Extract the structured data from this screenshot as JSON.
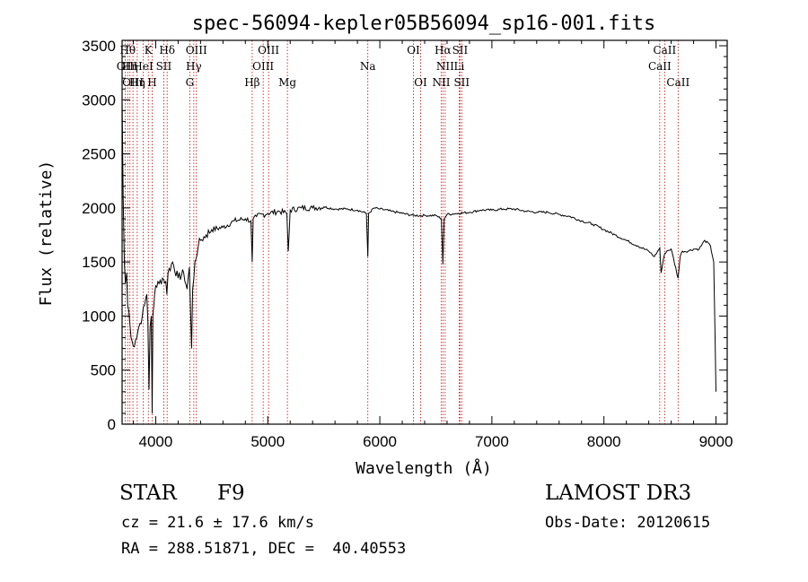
{
  "chart_data": {
    "type": "line",
    "title": "spec-56094-kepler05B56094_sp16-001.fits",
    "xlabel": "Wavelength (Å)",
    "ylabel": "Flux (relative)",
    "xlim": [
      3700,
      9100
    ],
    "ylim": [
      0,
      3550
    ],
    "xticks": [
      4000,
      5000,
      6000,
      7000,
      8000,
      9000
    ],
    "yticks": [
      0,
      500,
      1000,
      1500,
      2000,
      2500,
      3000,
      3500
    ],
    "series": [
      {
        "name": "flux",
        "x": [
          3700,
          3710,
          3720,
          3730,
          3740,
          3750,
          3760,
          3780,
          3800,
          3820,
          3850,
          3880,
          3900,
          3920,
          3930,
          3940,
          3950,
          3960,
          3968,
          3975,
          3990,
          4000,
          4030,
          4060,
          4090,
          4100,
          4110,
          4150,
          4200,
          4250,
          4280,
          4300,
          4320,
          4330,
          4340,
          4350,
          4380,
          4400,
          4450,
          4500,
          4600,
          4700,
          4800,
          4850,
          4861,
          4870,
          4900,
          5000,
          5100,
          5170,
          5183,
          5200,
          5300,
          5400,
          5500,
          5600,
          5700,
          5800,
          5880,
          5893,
          5900,
          5950,
          6000,
          6100,
          6200,
          6300,
          6400,
          6500,
          6550,
          6563,
          6575,
          6600,
          6700,
          6800,
          6900,
          7000,
          7100,
          7200,
          7300,
          7400,
          7500,
          7600,
          7700,
          7800,
          7900,
          8000,
          8100,
          8200,
          8300,
          8400,
          8450,
          8498,
          8510,
          8542,
          8560,
          8600,
          8662,
          8680,
          8700,
          8750,
          8800,
          8850,
          8900,
          8950,
          8980,
          9000
        ],
        "values": [
          3000,
          2100,
          1500,
          1300,
          1400,
          1100,
          1050,
          800,
          720,
          780,
          900,
          1000,
          1100,
          1200,
          950,
          320,
          900,
          1000,
          100,
          1000,
          1200,
          1280,
          1300,
          1350,
          1320,
          1200,
          1400,
          1500,
          1350,
          1400,
          1250,
          1450,
          700,
          1250,
          1350,
          1500,
          1650,
          1700,
          1750,
          1800,
          1820,
          1880,
          1900,
          1880,
          1500,
          1900,
          1920,
          1950,
          1970,
          1950,
          1600,
          1980,
          2000,
          2000,
          2010,
          1990,
          1990,
          1980,
          1950,
          1550,
          1950,
          2000,
          1990,
          1970,
          1950,
          1930,
          1930,
          1930,
          1900,
          1480,
          1900,
          1940,
          1950,
          1960,
          1980,
          1980,
          1990,
          1990,
          1970,
          1960,
          1960,
          1940,
          1920,
          1880,
          1850,
          1800,
          1750,
          1700,
          1650,
          1600,
          1550,
          1630,
          1400,
          1580,
          1600,
          1620,
          1350,
          1550,
          1600,
          1600,
          1620,
          1620,
          1700,
          1650,
          1500,
          300
        ]
      }
    ],
    "lines": [
      {
        "wave": 3727,
        "labels": [
          "OII"
        ],
        "row": 1
      },
      {
        "wave": 3750,
        "labels": [
          "Hθ"
        ],
        "row": 0
      },
      {
        "wave": 3770,
        "labels": [
          "Hη"
        ],
        "row": 1
      },
      {
        "wave": 3797,
        "labels": [
          "OIII"
        ],
        "row": 2
      },
      {
        "wave": 3835,
        "labels": [
          "Hη"
        ],
        "row": 2
      },
      {
        "wave": 3889,
        "labels": [
          "HeI"
        ],
        "row": 1
      },
      {
        "wave": 3934,
        "labels": [
          "K"
        ],
        "row": 0
      },
      {
        "wave": 3968,
        "labels": [
          "H"
        ],
        "row": 2
      },
      {
        "wave": 4072,
        "labels": [
          "SII"
        ],
        "row": 1
      },
      {
        "wave": 4102,
        "labels": [
          "Hδ"
        ],
        "row": 0
      },
      {
        "wave": 4304,
        "labels": [
          "G"
        ],
        "row": 2
      },
      {
        "wave": 4340,
        "labels": [
          "Hγ"
        ],
        "row": 1
      },
      {
        "wave": 4363,
        "labels": [
          "OIII"
        ],
        "row": 0
      },
      {
        "wave": 4861,
        "labels": [
          "Hβ"
        ],
        "row": 2
      },
      {
        "wave": 4959,
        "labels": [
          "OIII"
        ],
        "row": 1
      },
      {
        "wave": 5007,
        "labels": [
          "OIII"
        ],
        "row": 0
      },
      {
        "wave": 5175,
        "labels": [
          "Mg"
        ],
        "row": 2
      },
      {
        "wave": 5893,
        "labels": [
          "Na"
        ],
        "row": 1
      },
      {
        "wave": 6300,
        "labels": [
          "OI"
        ],
        "row": 0
      },
      {
        "wave": 6364,
        "labels": [
          "OI"
        ],
        "row": 2
      },
      {
        "wave": 6548,
        "labels": [
          "NII"
        ],
        "row": 2
      },
      {
        "wave": 6563,
        "labels": [
          "Hα"
        ],
        "row": 0
      },
      {
        "wave": 6583,
        "labels": [
          "NII"
        ],
        "row": 1
      },
      {
        "wave": 6708,
        "labels": [
          "Li"
        ],
        "row": 1
      },
      {
        "wave": 6716,
        "labels": [
          "SII"
        ],
        "row": 0
      },
      {
        "wave": 6731,
        "labels": [
          "SII"
        ],
        "row": 2
      },
      {
        "wave": 8498,
        "labels": [
          "CaII"
        ],
        "row": 1
      },
      {
        "wave": 8542,
        "labels": [
          "CaII"
        ],
        "row": 0
      },
      {
        "wave": 8662,
        "labels": [
          "CaII"
        ],
        "row": 2
      }
    ]
  },
  "info": {
    "class": "STAR",
    "subclass": "F9",
    "survey": "LAMOST DR3",
    "cz": "cz = 21.6 ± 17.6 km/s",
    "obsdate": "Obs-Date: 20120615",
    "coords": "RA = 288.51871, DEC =  40.40553"
  },
  "colors": {
    "axis": "#000000",
    "spectrum": "#000000",
    "line_marker": "#cc0000"
  }
}
